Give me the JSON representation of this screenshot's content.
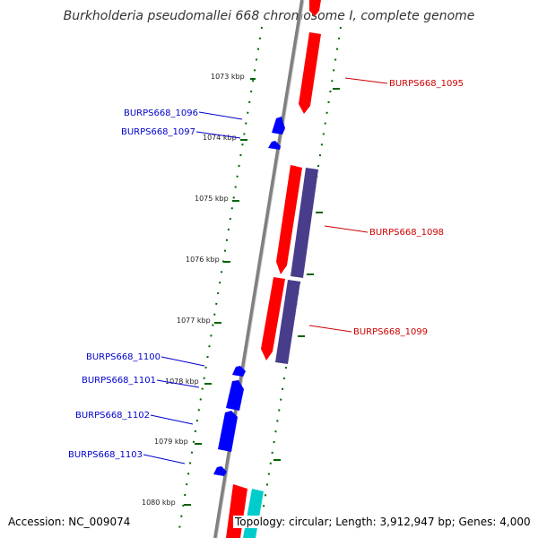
{
  "title": "Burkholderia pseudomallei 668 chromosome I, complete genome",
  "footer": {
    "accession": "Accession: NC_009074",
    "summary": "Topology: circular; Length: 3,912,947 bp; Genes: 4,000"
  },
  "colors": {
    "forward_gene": "#ff0000",
    "reverse_gene": "#0000ff",
    "pseudo_forward": "#483d8b",
    "pseudo_cyan": "#00cccc",
    "backbone": "#808080",
    "ticks": "#006400",
    "forward_label": "#cc0000",
    "reverse_label": "#0000cc"
  },
  "scale_labels": [
    "1073 kbp",
    "1074 kbp",
    "1075 kbp",
    "1076 kbp",
    "1077 kbp",
    "1078 kbp",
    "1079 kbp",
    "1080 kbp"
  ],
  "forward_genes": [
    "BURPS668_1095",
    "BURPS668_1098",
    "BURPS668_1099"
  ],
  "reverse_genes": [
    "BURPS668_1096",
    "BURPS668_1097",
    "BURPS668_1100",
    "BURPS668_1101",
    "BURPS668_1102",
    "BURPS668_1103"
  ]
}
